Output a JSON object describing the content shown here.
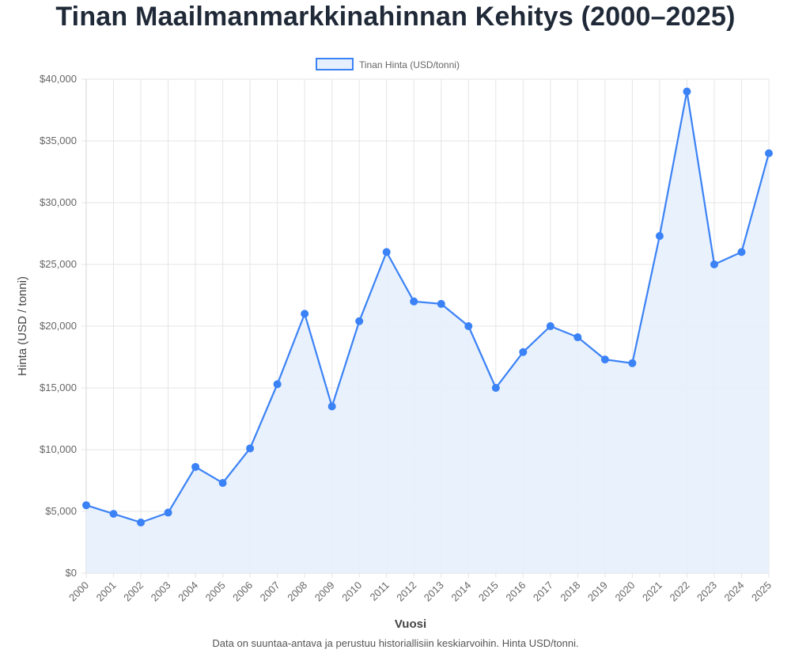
{
  "colors": {
    "line": "#3b82f6",
    "fill": "#e6effc",
    "grid": "#e5e5e5"
  },
  "chart_data": {
    "type": "area",
    "title": "Tinan Maailmanmarkkinahinnan Kehitys (2000–2025)",
    "xlabel": "Vuosi",
    "ylabel": "Hinta (USD / tonni)",
    "ylim": [
      0,
      40000
    ],
    "yticks": [
      "$0",
      "$5,000",
      "$10,000",
      "$15,000",
      "$20,000",
      "$25,000",
      "$30,000",
      "$35,000",
      "$40,000"
    ],
    "grid": true,
    "legend_position": "top-center",
    "categories": [
      "2000",
      "2001",
      "2002",
      "2003",
      "2004",
      "2005",
      "2006",
      "2007",
      "2008",
      "2009",
      "2010",
      "2011",
      "2012",
      "2013",
      "2014",
      "2015",
      "2016",
      "2017",
      "2018",
      "2019",
      "2020",
      "2021",
      "2022",
      "2023",
      "2024",
      "2025"
    ],
    "series": [
      {
        "name": "Tinan Hinta (USD/tonni)",
        "values": [
          5500,
          4800,
          4100,
          4900,
          8600,
          7300,
          10100,
          15300,
          21000,
          13500,
          20400,
          26000,
          22000,
          21800,
          20000,
          15000,
          17900,
          20000,
          19100,
          17300,
          17000,
          27300,
          39000,
          25000,
          26000,
          34000
        ]
      }
    ],
    "footnote": "Data on suuntaa-antava ja perustuu historiallisiin keskiarvoihin. Hinta USD/tonni."
  }
}
